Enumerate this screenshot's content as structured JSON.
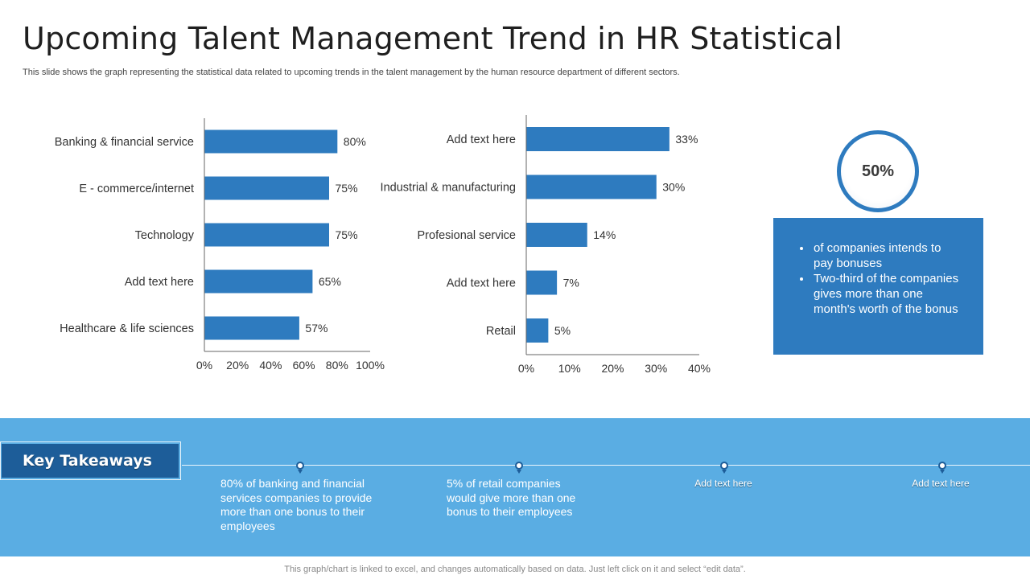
{
  "title": "Upcoming Talent Management Trend in HR Statistical",
  "subtitle": "This slide shows the graph representing the statistical data related to upcoming trends in the talent management by the human resource department of different sectors.",
  "colors": {
    "bar": "#2e7bbf",
    "band": "#5aade3",
    "dark": "#1d5d99"
  },
  "chart_data": [
    {
      "type": "bar",
      "orientation": "horizontal",
      "categories": [
        "Banking & financial service",
        "E - commerce/internet",
        "Technology",
        "Add text here",
        "Healthcare & life sciences"
      ],
      "values": [
        80,
        75,
        75,
        65,
        57
      ],
      "labels": [
        "80%",
        "75%",
        "75%",
        "65%",
        "57%"
      ],
      "xlim": [
        0,
        100
      ],
      "xticks": [
        "0%",
        "20%",
        "40%",
        "60%",
        "80%",
        "100%"
      ]
    },
    {
      "type": "bar",
      "orientation": "horizontal",
      "categories": [
        "Add text here",
        "Industrial & manufacturing",
        "Profesional service",
        "Add text here",
        "Retail"
      ],
      "values": [
        33,
        30,
        14,
        7,
        5
      ],
      "labels": [
        "33%",
        "30%",
        "14%",
        "7%",
        "5%"
      ],
      "xlim": [
        0,
        40
      ],
      "xticks": [
        "0%",
        "10%",
        "20%",
        "30%",
        "40%"
      ]
    }
  ],
  "stat": {
    "value": "50%",
    "bullets": [
      "of companies intends to pay bonuses",
      "Two-third of the companies gives more than one month's worth of the bonus"
    ]
  },
  "takeaways": {
    "heading": "Key Takeaways",
    "items": [
      "80% of banking and financial services companies to provide more than one bonus to their employees",
      "5% of retail companies would give more than one bonus to their employees",
      "Add text here",
      "Add text here"
    ]
  },
  "footnote": "This graph/chart is linked to excel,  and changes automatically based on data. Just left click on it and select “edit data”."
}
